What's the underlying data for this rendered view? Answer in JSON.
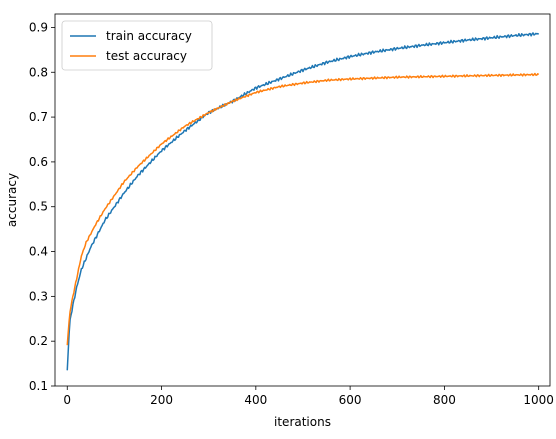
{
  "chart_data": {
    "type": "line",
    "title": "",
    "xlabel": "iterations",
    "ylabel": "accuracy",
    "xlim": [
      -26,
      1024
    ],
    "ylim": [
      0.1,
      0.93
    ],
    "x_ticks": [
      0,
      200,
      400,
      600,
      800,
      1000
    ],
    "y_ticks": [
      0.1,
      0.2,
      0.3,
      0.4,
      0.5,
      0.6,
      0.7,
      0.8,
      0.9
    ],
    "x_tick_labels": [
      "0",
      "200",
      "400",
      "600",
      "800",
      "1000"
    ],
    "y_tick_labels": [
      "0.1",
      "0.2",
      "0.3",
      "0.4",
      "0.5",
      "0.6",
      "0.7",
      "0.8",
      "0.9"
    ],
    "grid": false,
    "legend_position": "top-left",
    "series": [
      {
        "name": "train accuracy",
        "color": "#1f77b4",
        "x": [
          0,
          5,
          10,
          20,
          30,
          40,
          50,
          60,
          80,
          100,
          120,
          150,
          200,
          250,
          300,
          350,
          400,
          450,
          500,
          550,
          600,
          650,
          700,
          750,
          800,
          850,
          900,
          950,
          1000
        ],
        "y": [
          0.135,
          0.24,
          0.27,
          0.32,
          0.36,
          0.385,
          0.41,
          0.43,
          0.47,
          0.5,
          0.53,
          0.57,
          0.625,
          0.67,
          0.71,
          0.735,
          0.765,
          0.785,
          0.805,
          0.822,
          0.835,
          0.845,
          0.853,
          0.86,
          0.866,
          0.872,
          0.877,
          0.882,
          0.886
        ]
      },
      {
        "name": "test accuracy",
        "color": "#ff7f0e",
        "x": [
          0,
          5,
          10,
          20,
          30,
          40,
          50,
          60,
          80,
          100,
          120,
          150,
          200,
          250,
          300,
          350,
          400,
          450,
          500,
          550,
          600,
          650,
          700,
          750,
          800,
          850,
          900,
          950,
          1000
        ],
        "y": [
          0.19,
          0.26,
          0.29,
          0.34,
          0.39,
          0.42,
          0.44,
          0.46,
          0.495,
          0.525,
          0.555,
          0.59,
          0.64,
          0.68,
          0.71,
          0.735,
          0.755,
          0.768,
          0.776,
          0.782,
          0.785,
          0.787,
          0.789,
          0.79,
          0.791,
          0.792,
          0.793,
          0.794,
          0.795
        ]
      }
    ]
  }
}
